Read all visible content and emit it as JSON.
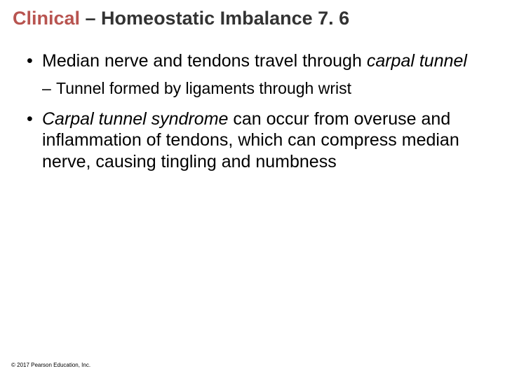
{
  "title": {
    "accent": "Clinical",
    "rest": " – Homeostatic Imbalance 7. 6",
    "accent_color": "#b85450",
    "rest_color": "#333333",
    "fontsize": 27
  },
  "bullets": {
    "b1_pre": "Median nerve and tendons travel through ",
    "b1_italic": "carpal tunnel",
    "b1_sub": "Tunnel formed by ligaments through wrist",
    "b2_italic": "Carpal tunnel syndrome",
    "b2_post": " can occur from overuse and inflammation of tendons, which can compress median nerve, causing tingling and numbness"
  },
  "copyright": "© 2017 Pearson Education, Inc.",
  "background_color": "#ffffff",
  "body_fontsize_l1": 25,
  "body_fontsize_l2": 23
}
